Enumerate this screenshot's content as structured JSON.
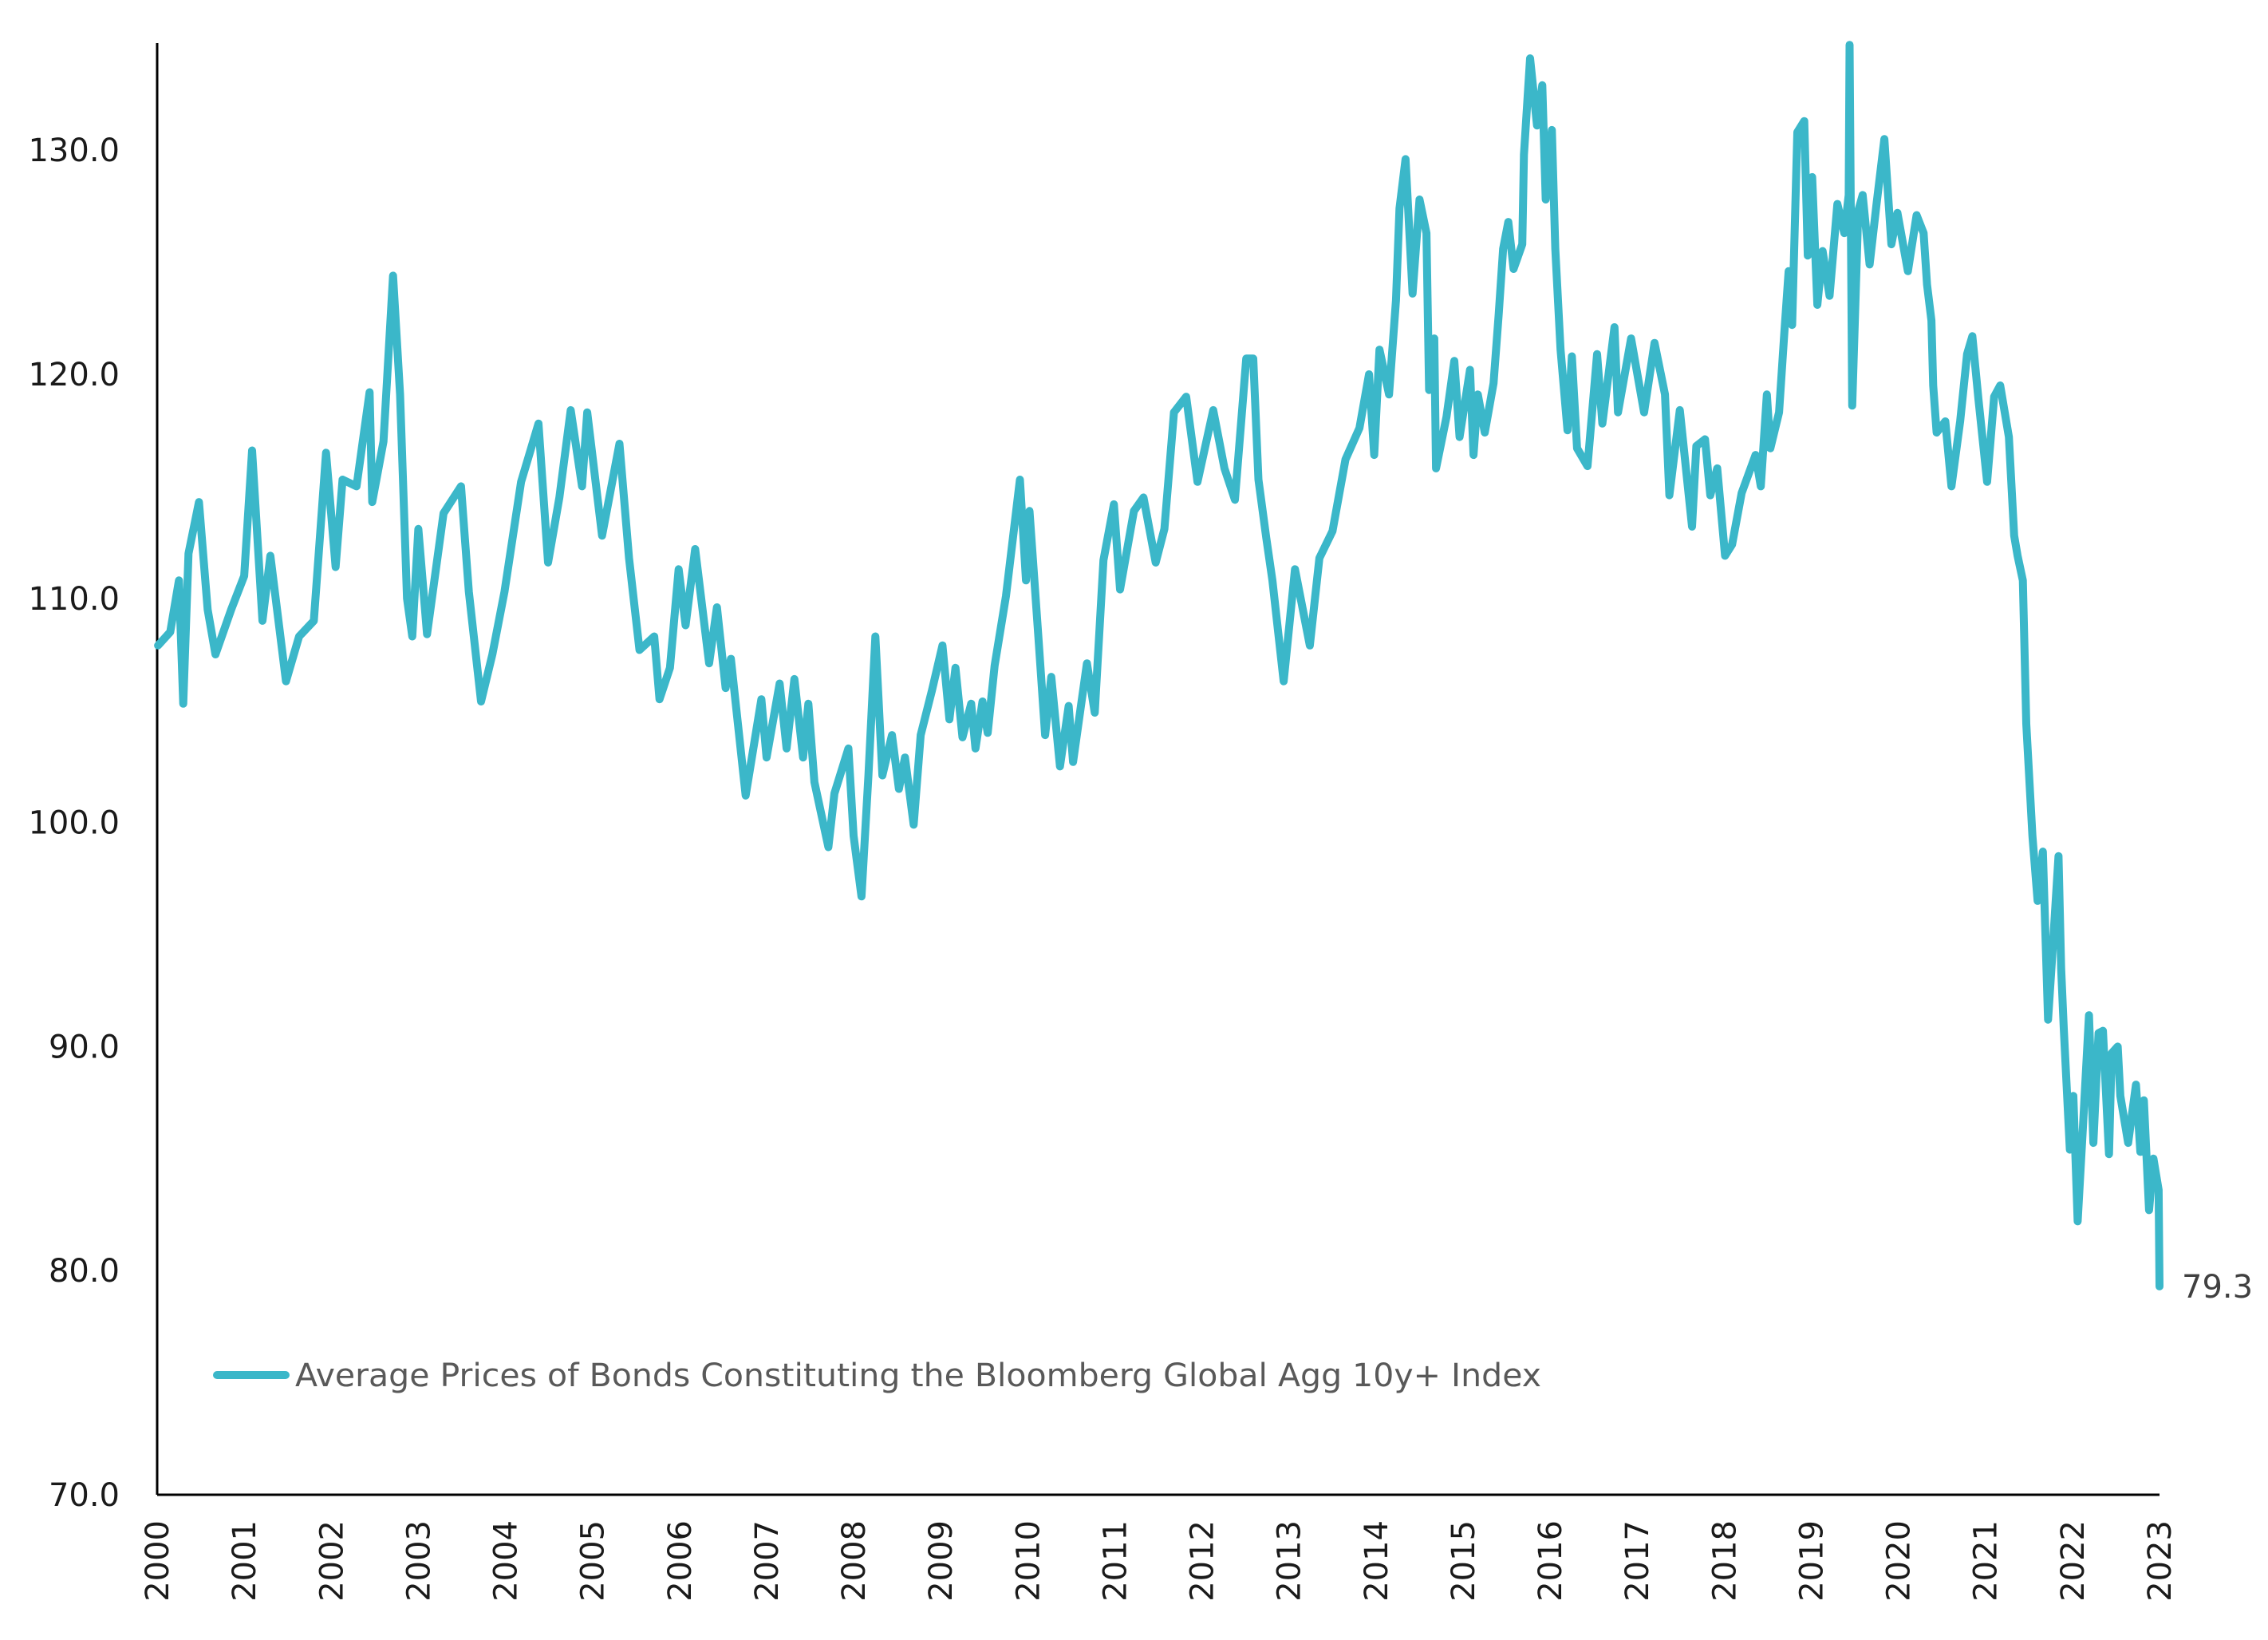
{
  "chart_data": {
    "type": "line",
    "title": "",
    "xlabel": "",
    "ylabel": "",
    "xlim": [
      2000,
      2023
    ],
    "ylim": [
      70,
      135
    ],
    "yticks": [
      70,
      80,
      90,
      100,
      110,
      120,
      130
    ],
    "ytick_labels": [
      "70.0",
      "80.0",
      "90.0",
      "100.0",
      "110.0",
      "120.0",
      "130.0"
    ],
    "xticks": [
      2000,
      2001,
      2002,
      2003,
      2004,
      2005,
      2006,
      2007,
      2008,
      2009,
      2010,
      2011,
      2012,
      2013,
      2014,
      2015,
      2016,
      2017,
      2018,
      2019,
      2020,
      2021,
      2022,
      2023
    ],
    "xtick_labels": [
      "2000",
      "2001",
      "2002",
      "2003",
      "2004",
      "2005",
      "2006",
      "2007",
      "2008",
      "2009",
      "2010",
      "2011",
      "2012",
      "2013",
      "2014",
      "2015",
      "2016",
      "2017",
      "2018",
      "2019",
      "2020",
      "2021",
      "2022",
      "2023"
    ],
    "grid": false,
    "legend_position": "bottom-left",
    "end_label": "79.3",
    "series": [
      {
        "name": "Average Prices of Bonds Constituting the Bloomberg Global Agg 10y+ Index",
        "color": "#3bb7c9",
        "x": [
          2000.01,
          2000.15,
          2000.25,
          2000.3,
          2000.36,
          2000.48,
          2000.58,
          2000.67,
          2000.85,
          2001.0,
          2001.09,
          2001.21,
          2001.3,
          2001.48,
          2001.63,
          2001.8,
          2001.94,
          2002.05,
          2002.13,
          2002.29,
          2002.44,
          2002.47,
          2002.6,
          2002.71,
          2002.79,
          2002.87,
          2002.93,
          2003.0,
          2003.1,
          2003.29,
          2003.49,
          2003.58,
          2003.72,
          2003.85,
          2003.99,
          2004.18,
          2004.38,
          2004.49,
          2004.62,
          2004.75,
          2004.88,
          2004.94,
          2005.11,
          2005.31,
          2005.42,
          2005.54,
          2005.71,
          2005.77,
          2005.89,
          2005.99,
          2006.07,
          2006.18,
          2006.34,
          2006.43,
          2006.53,
          2006.59,
          2006.76,
          2006.94,
          2007.0,
          2007.15,
          2007.23,
          2007.32,
          2007.42,
          2007.48,
          2007.55,
          2007.71,
          2007.78,
          2007.94,
          2008.0,
          2008.09,
          2008.17,
          2008.25,
          2008.33,
          2008.44,
          2008.52,
          2008.59,
          2008.69,
          2008.77,
          2008.9,
          2009.02,
          2009.1,
          2009.17,
          2009.25,
          2009.35,
          2009.4,
          2009.48,
          2009.54,
          2009.62,
          2009.75,
          2009.91,
          2009.98,
          2010.02,
          2010.12,
          2010.2,
          2010.27,
          2010.37,
          2010.47,
          2010.52,
          2010.68,
          2010.77,
          2010.87,
          2010.99,
          2011.06,
          2011.22,
          2011.33,
          2011.47,
          2011.57,
          2011.68,
          2011.82,
          2011.95,
          2012.13,
          2012.26,
          2012.38,
          2012.51,
          2012.59,
          2012.65,
          2012.74,
          2012.81,
          2012.94,
          2013.07,
          2013.24,
          2013.35,
          2013.5,
          2013.65,
          2013.81,
          2013.92,
          2013.98,
          2014.04,
          2014.15,
          2014.23,
          2014.27,
          2014.34,
          2014.42,
          2014.5,
          2014.58,
          2014.61,
          2014.67,
          2014.69,
          2014.81,
          2014.9,
          2014.96,
          2015.08,
          2015.12,
          2015.17,
          2015.25,
          2015.35,
          2015.41,
          2015.46,
          2015.52,
          2015.58,
          2015.68,
          2015.7,
          2015.77,
          2015.85,
          2015.91,
          2015.95,
          2016.02,
          2016.06,
          2016.12,
          2016.2,
          2016.25,
          2016.31,
          2016.43,
          2016.54,
          2016.6,
          2016.74,
          2016.78,
          2016.93,
          2017.08,
          2017.2,
          2017.32,
          2017.37,
          2017.49,
          2017.63,
          2017.68,
          2017.78,
          2017.84,
          2017.92,
          2018.01,
          2018.09,
          2018.2,
          2018.36,
          2018.42,
          2018.49,
          2018.53,
          2018.63,
          2018.69,
          2018.74,
          2018.78,
          2018.84,
          2018.92,
          2018.96,
          2019.01,
          2019.07,
          2019.13,
          2019.21,
          2019.3,
          2019.38,
          2019.43,
          2019.44,
          2019.47,
          2019.54,
          2019.59,
          2019.67,
          2019.75,
          2019.84,
          2019.92,
          2019.99,
          2020.11,
          2020.21,
          2020.29,
          2020.33,
          2020.38,
          2020.4,
          2020.44,
          2020.54,
          2020.61,
          2020.71,
          2020.79,
          2020.85,
          2020.92,
          2021.02,
          2021.1,
          2021.17,
          2021.27,
          2021.33,
          2021.37,
          2021.43,
          2021.47,
          2021.54,
          2021.6,
          2021.66,
          2021.72,
          2021.78,
          2021.84,
          2021.87,
          2021.9,
          2021.97,
          2022.01,
          2022.06,
          2022.12,
          2022.19,
          2022.24,
          2022.3,
          2022.35,
          2022.42,
          2022.45,
          2022.52,
          2022.55,
          2022.64,
          2022.73,
          2022.78,
          2022.82,
          2022.88,
          2022.93,
          2022.99,
          2023.0
        ],
        "values": [
          107.9,
          108.5,
          110.8,
          105.3,
          112.0,
          114.3,
          109.5,
          107.5,
          109.5,
          111.0,
          116.6,
          109.0,
          111.9,
          106.3,
          108.3,
          109.0,
          116.5,
          111.4,
          115.3,
          115.0,
          119.2,
          114.3,
          117.0,
          124.4,
          119.1,
          110.0,
          108.3,
          113.1,
          108.4,
          113.8,
          115.0,
          110.3,
          105.4,
          107.5,
          110.3,
          115.2,
          117.8,
          111.6,
          114.5,
          118.4,
          115.0,
          118.3,
          112.8,
          116.9,
          111.8,
          107.7,
          108.3,
          105.5,
          106.9,
          111.3,
          108.8,
          112.2,
          107.1,
          109.6,
          106.0,
          107.3,
          101.2,
          105.5,
          102.9,
          106.2,
          103.3,
          106.4,
          102.9,
          105.3,
          101.8,
          98.9,
          101.3,
          103.3,
          99.4,
          96.7,
          102.1,
          108.3,
          102.1,
          103.9,
          101.5,
          102.9,
          99.9,
          103.9,
          105.9,
          107.9,
          104.6,
          106.9,
          103.8,
          105.3,
          103.3,
          105.4,
          104.0,
          107.0,
          110.1,
          115.3,
          110.8,
          113.9,
          108.4,
          103.9,
          106.5,
          102.5,
          105.2,
          102.7,
          107.1,
          104.9,
          111.7,
          114.2,
          110.4,
          113.9,
          114.5,
          111.6,
          113.1,
          118.3,
          119.0,
          115.2,
          118.4,
          115.8,
          114.4,
          120.7,
          120.7,
          115.3,
          112.7,
          110.8,
          106.3,
          111.3,
          107.9,
          111.8,
          113.0,
          116.2,
          117.6,
          120.0,
          116.4,
          121.1,
          119.1,
          123.3,
          127.4,
          129.6,
          123.6,
          127.8,
          126.3,
          119.3,
          121.6,
          115.8,
          118.1,
          120.6,
          117.2,
          120.2,
          116.4,
          119.1,
          117.4,
          119.6,
          122.7,
          125.6,
          126.8,
          124.7,
          125.8,
          129.8,
          134.1,
          131.1,
          132.9,
          127.8,
          130.9,
          125.6,
          121.1,
          117.5,
          120.8,
          116.7,
          115.9,
          120.9,
          117.8,
          122.1,
          118.3,
          121.6,
          118.3,
          121.4,
          119.1,
          114.6,
          118.4,
          113.2,
          116.8,
          117.1,
          114.6,
          115.8,
          111.9,
          112.4,
          114.7,
          116.4,
          115.0,
          119.1,
          116.7,
          118.3,
          121.8,
          124.6,
          122.2,
          130.8,
          131.3,
          125.3,
          128.8,
          123.1,
          125.5,
          123.5,
          127.6,
          126.3,
          128.0,
          134.7,
          118.6,
          127.3,
          128.0,
          124.9,
          127.6,
          130.5,
          125.8,
          127.2,
          124.6,
          127.1,
          126.3,
          124.0,
          122.4,
          119.5,
          117.4,
          117.9,
          115.0,
          117.9,
          120.9,
          121.7,
          118.9,
          115.2,
          119.0,
          119.5,
          117.2,
          112.8,
          111.9,
          110.8,
          104.4,
          99.4,
          96.5,
          98.7,
          91.2,
          94.8,
          98.5,
          93.5,
          90.8,
          85.4,
          87.8,
          82.2,
          86.4,
          91.4,
          85.7,
          90.6,
          90.7,
          85.2,
          89.7,
          90.0,
          87.8,
          85.7,
          88.3,
          85.3,
          87.6,
          82.7,
          85.0,
          83.6,
          79.3
        ]
      }
    ]
  }
}
